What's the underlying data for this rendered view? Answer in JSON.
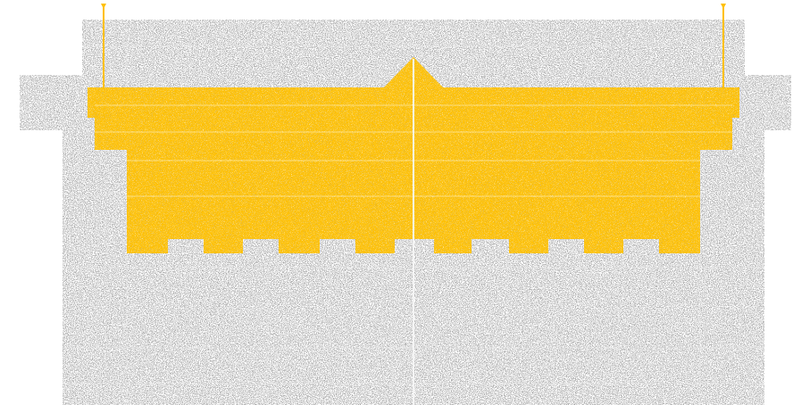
{
  "figure": {
    "colors": {
      "background": "#ffffff",
      "stone_gray": "#8f8f8f",
      "stone_gray_dark": "#6f6f6f",
      "highlight_yellow": "#ffc000",
      "highlight_yellow_dark": "#e7a900",
      "joint_white": "#f3f3f3"
    },
    "icons": {
      "left_marker": "pin-marker-icon",
      "right_marker": "pin-marker-icon"
    }
  }
}
